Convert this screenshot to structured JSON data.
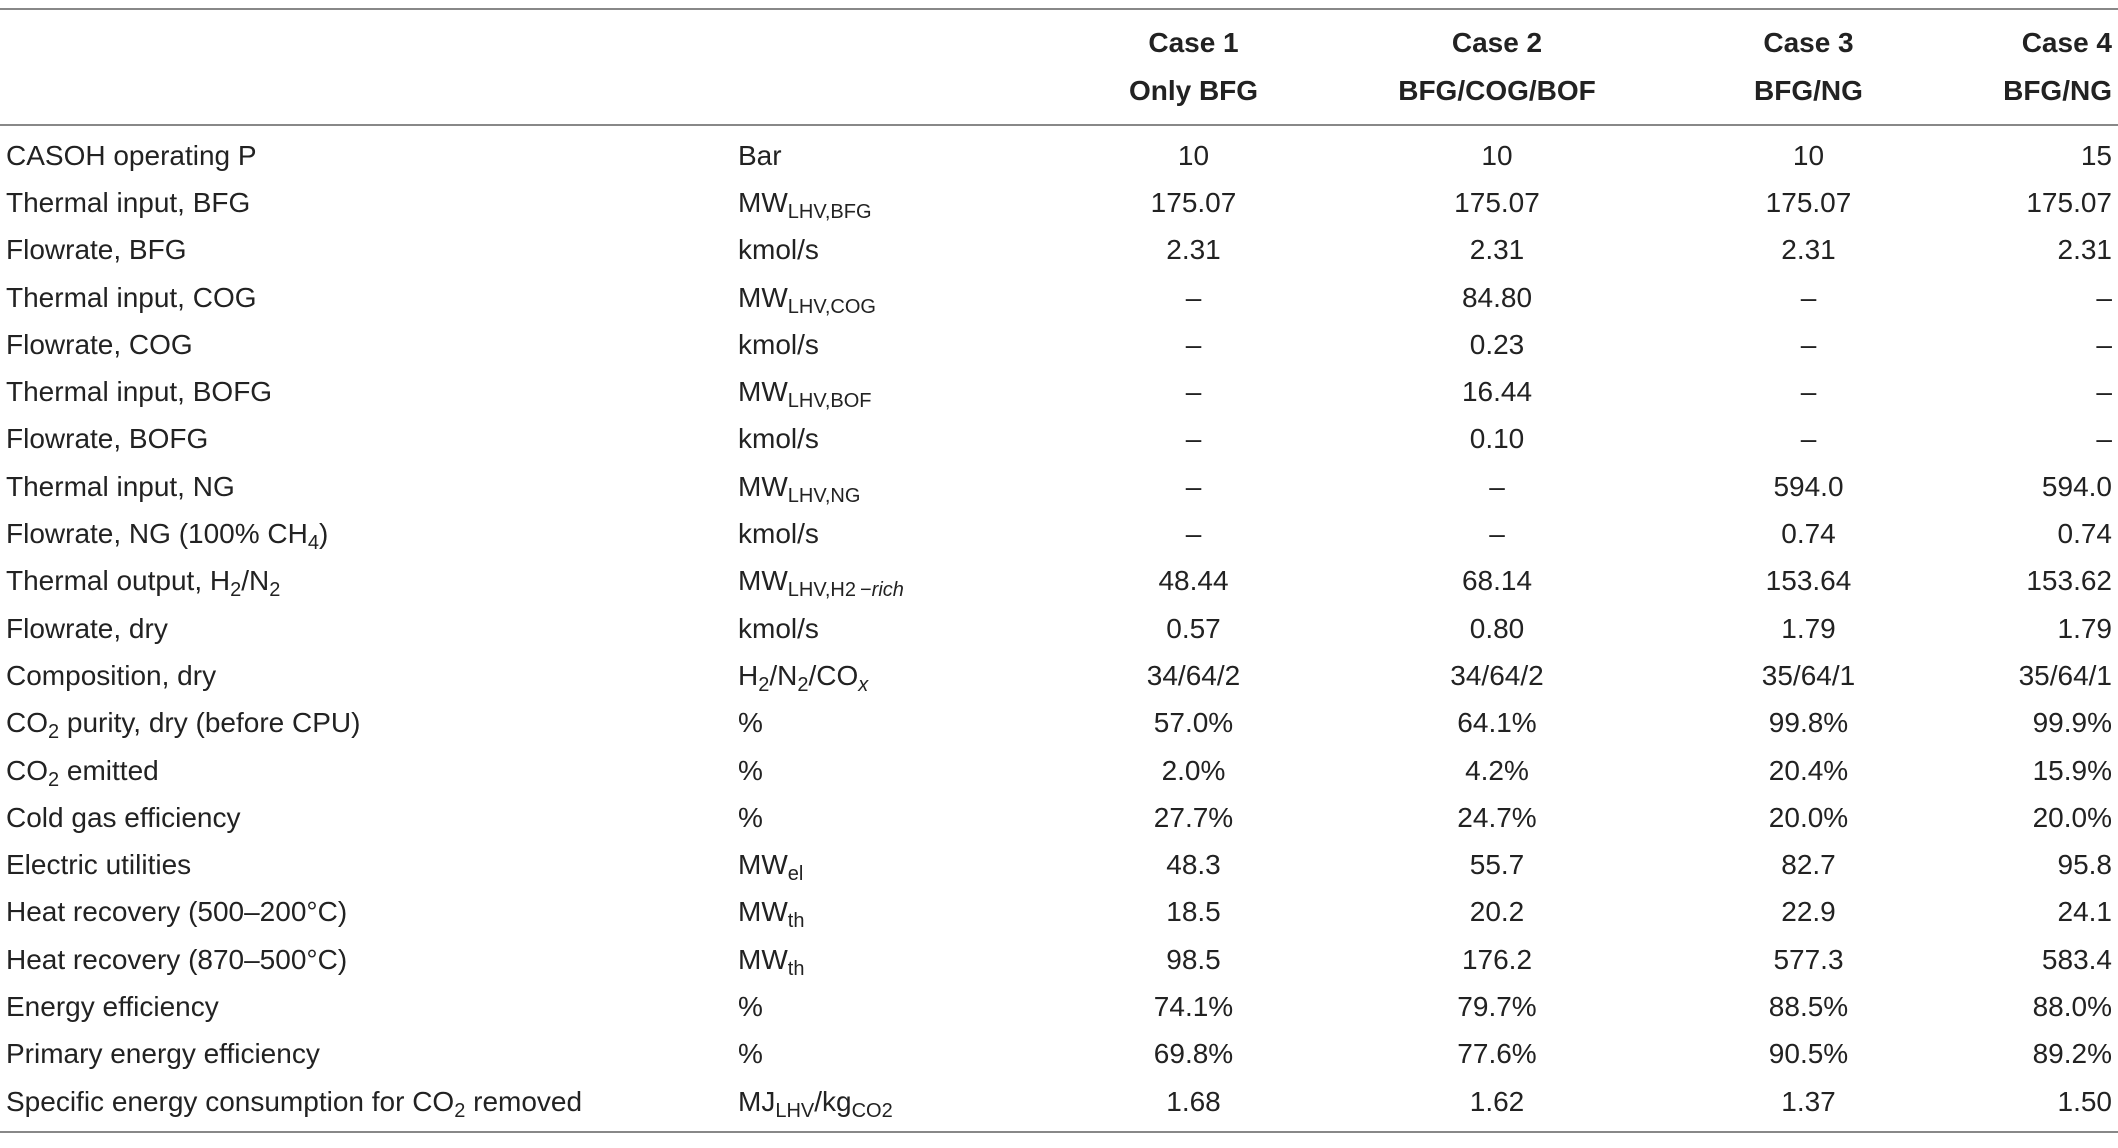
{
  "header": {
    "col0": "",
    "col1": "",
    "cases": [
      {
        "line1": "Case 1",
        "line2": "Only BFG"
      },
      {
        "line1": "Case 2",
        "line2": "BFG/COG/BOF"
      },
      {
        "line1": "Case 3",
        "line2": "BFG/NG"
      },
      {
        "line1": "Case 4",
        "line2": "BFG/NG"
      }
    ]
  },
  "rows": [
    {
      "param": [
        {
          "t": "CASOH operating P"
        }
      ],
      "unit": [
        {
          "t": "Bar"
        }
      ],
      "values": [
        "10",
        "10",
        "10",
        "15"
      ]
    },
    {
      "param": [
        {
          "t": "Thermal input, BFG"
        }
      ],
      "unit": [
        {
          "t": "MW"
        },
        {
          "t": "LHV,BFG",
          "sub": true
        }
      ],
      "values": [
        "175.07",
        "175.07",
        "175.07",
        "175.07"
      ]
    },
    {
      "param": [
        {
          "t": "Flowrate, BFG"
        }
      ],
      "unit": [
        {
          "t": "kmol/s"
        }
      ],
      "values": [
        "2.31",
        "2.31",
        "2.31",
        "2.31"
      ]
    },
    {
      "param": [
        {
          "t": "Thermal input, COG"
        }
      ],
      "unit": [
        {
          "t": "MW"
        },
        {
          "t": "LHV,COG",
          "sub": true
        }
      ],
      "values": [
        "–",
        "84.80",
        "–",
        "–"
      ]
    },
    {
      "param": [
        {
          "t": "Flowrate, COG"
        }
      ],
      "unit": [
        {
          "t": "kmol/s"
        }
      ],
      "values": [
        "–",
        "0.23",
        "–",
        "–"
      ]
    },
    {
      "param": [
        {
          "t": "Thermal input, BOFG"
        }
      ],
      "unit": [
        {
          "t": "MW"
        },
        {
          "t": "LHV,BOF",
          "sub": true
        }
      ],
      "values": [
        "–",
        "16.44",
        "–",
        "–"
      ]
    },
    {
      "param": [
        {
          "t": "Flowrate, BOFG"
        }
      ],
      "unit": [
        {
          "t": "kmol/s"
        }
      ],
      "values": [
        "–",
        "0.10",
        "–",
        "–"
      ]
    },
    {
      "param": [
        {
          "t": "Thermal input, NG"
        }
      ],
      "unit": [
        {
          "t": "MW"
        },
        {
          "t": "LHV,NG",
          "sub": true
        }
      ],
      "values": [
        "–",
        "–",
        "594.0",
        "594.0"
      ]
    },
    {
      "param": [
        {
          "t": "Flowrate, NG (100% CH"
        },
        {
          "t": "4",
          "sub": true
        },
        {
          "t": ")"
        }
      ],
      "unit": [
        {
          "t": "kmol/s"
        }
      ],
      "values": [
        "–",
        "–",
        "0.74",
        "0.74"
      ]
    },
    {
      "param": [
        {
          "t": "Thermal output, H"
        },
        {
          "t": "2",
          "sub": true
        },
        {
          "t": "/N"
        },
        {
          "t": "2",
          "sub": true
        }
      ],
      "unit": [
        {
          "t": "MW"
        },
        {
          "t": "LHV,H2 −",
          "sub": true
        },
        {
          "t": "rich",
          "sub": true,
          "it": true
        }
      ],
      "values": [
        "48.44",
        "68.14",
        "153.64",
        "153.62"
      ]
    },
    {
      "param": [
        {
          "t": "Flowrate, dry"
        }
      ],
      "unit": [
        {
          "t": "kmol/s"
        }
      ],
      "values": [
        "0.57",
        "0.80",
        "1.79",
        "1.79"
      ]
    },
    {
      "param": [
        {
          "t": "Composition, dry"
        }
      ],
      "unit": [
        {
          "t": "H"
        },
        {
          "t": "2",
          "sub": true
        },
        {
          "t": "/N"
        },
        {
          "t": "2",
          "sub": true
        },
        {
          "t": "/CO"
        },
        {
          "t": "x",
          "sub": true,
          "it": true
        }
      ],
      "values": [
        "34/64/2",
        "34/64/2",
        "35/64/1",
        "35/64/1"
      ]
    },
    {
      "param": [
        {
          "t": "CO"
        },
        {
          "t": "2",
          "sub": true
        },
        {
          "t": " purity, dry (before CPU)"
        }
      ],
      "unit": [
        {
          "t": "%"
        }
      ],
      "values": [
        "57.0%",
        "64.1%",
        "99.8%",
        "99.9%"
      ]
    },
    {
      "param": [
        {
          "t": "CO"
        },
        {
          "t": "2",
          "sub": true
        },
        {
          "t": " emitted"
        }
      ],
      "unit": [
        {
          "t": "%"
        }
      ],
      "values": [
        "2.0%",
        "4.2%",
        "20.4%",
        "15.9%"
      ]
    },
    {
      "param": [
        {
          "t": "Cold gas efficiency"
        }
      ],
      "unit": [
        {
          "t": "%"
        }
      ],
      "values": [
        "27.7%",
        "24.7%",
        "20.0%",
        "20.0%"
      ]
    },
    {
      "param": [
        {
          "t": "Electric utilities"
        }
      ],
      "unit": [
        {
          "t": "MW"
        },
        {
          "t": "el",
          "sub": true
        }
      ],
      "values": [
        "48.3",
        "55.7",
        "82.7",
        "95.8"
      ]
    },
    {
      "param": [
        {
          "t": "Heat recovery (500–200°C)"
        }
      ],
      "unit": [
        {
          "t": "MW"
        },
        {
          "t": "th",
          "sub": true
        }
      ],
      "values": [
        "18.5",
        "20.2",
        "22.9",
        "24.1"
      ]
    },
    {
      "param": [
        {
          "t": "Heat recovery (870–500°C)"
        }
      ],
      "unit": [
        {
          "t": "MW"
        },
        {
          "t": "th",
          "sub": true
        }
      ],
      "values": [
        "98.5",
        "176.2",
        "577.3",
        "583.4"
      ]
    },
    {
      "param": [
        {
          "t": "Energy efficiency"
        }
      ],
      "unit": [
        {
          "t": "%"
        }
      ],
      "values": [
        "74.1%",
        "79.7%",
        "88.5%",
        "88.0%"
      ]
    },
    {
      "param": [
        {
          "t": "Primary energy efficiency"
        }
      ],
      "unit": [
        {
          "t": "%"
        }
      ],
      "values": [
        "69.8%",
        "77.6%",
        "90.5%",
        "89.2%"
      ]
    },
    {
      "param": [
        {
          "t": "Specific energy consumption for CO"
        },
        {
          "t": "2",
          "sub": true
        },
        {
          "t": " removed"
        }
      ],
      "unit": [
        {
          "t": "MJ"
        },
        {
          "t": "LHV",
          "sub": true
        },
        {
          "t": "/kg"
        },
        {
          "t": "CO2",
          "sub": true
        }
      ],
      "values": [
        "1.68",
        "1.62",
        "1.37",
        "1.50"
      ]
    }
  ]
}
